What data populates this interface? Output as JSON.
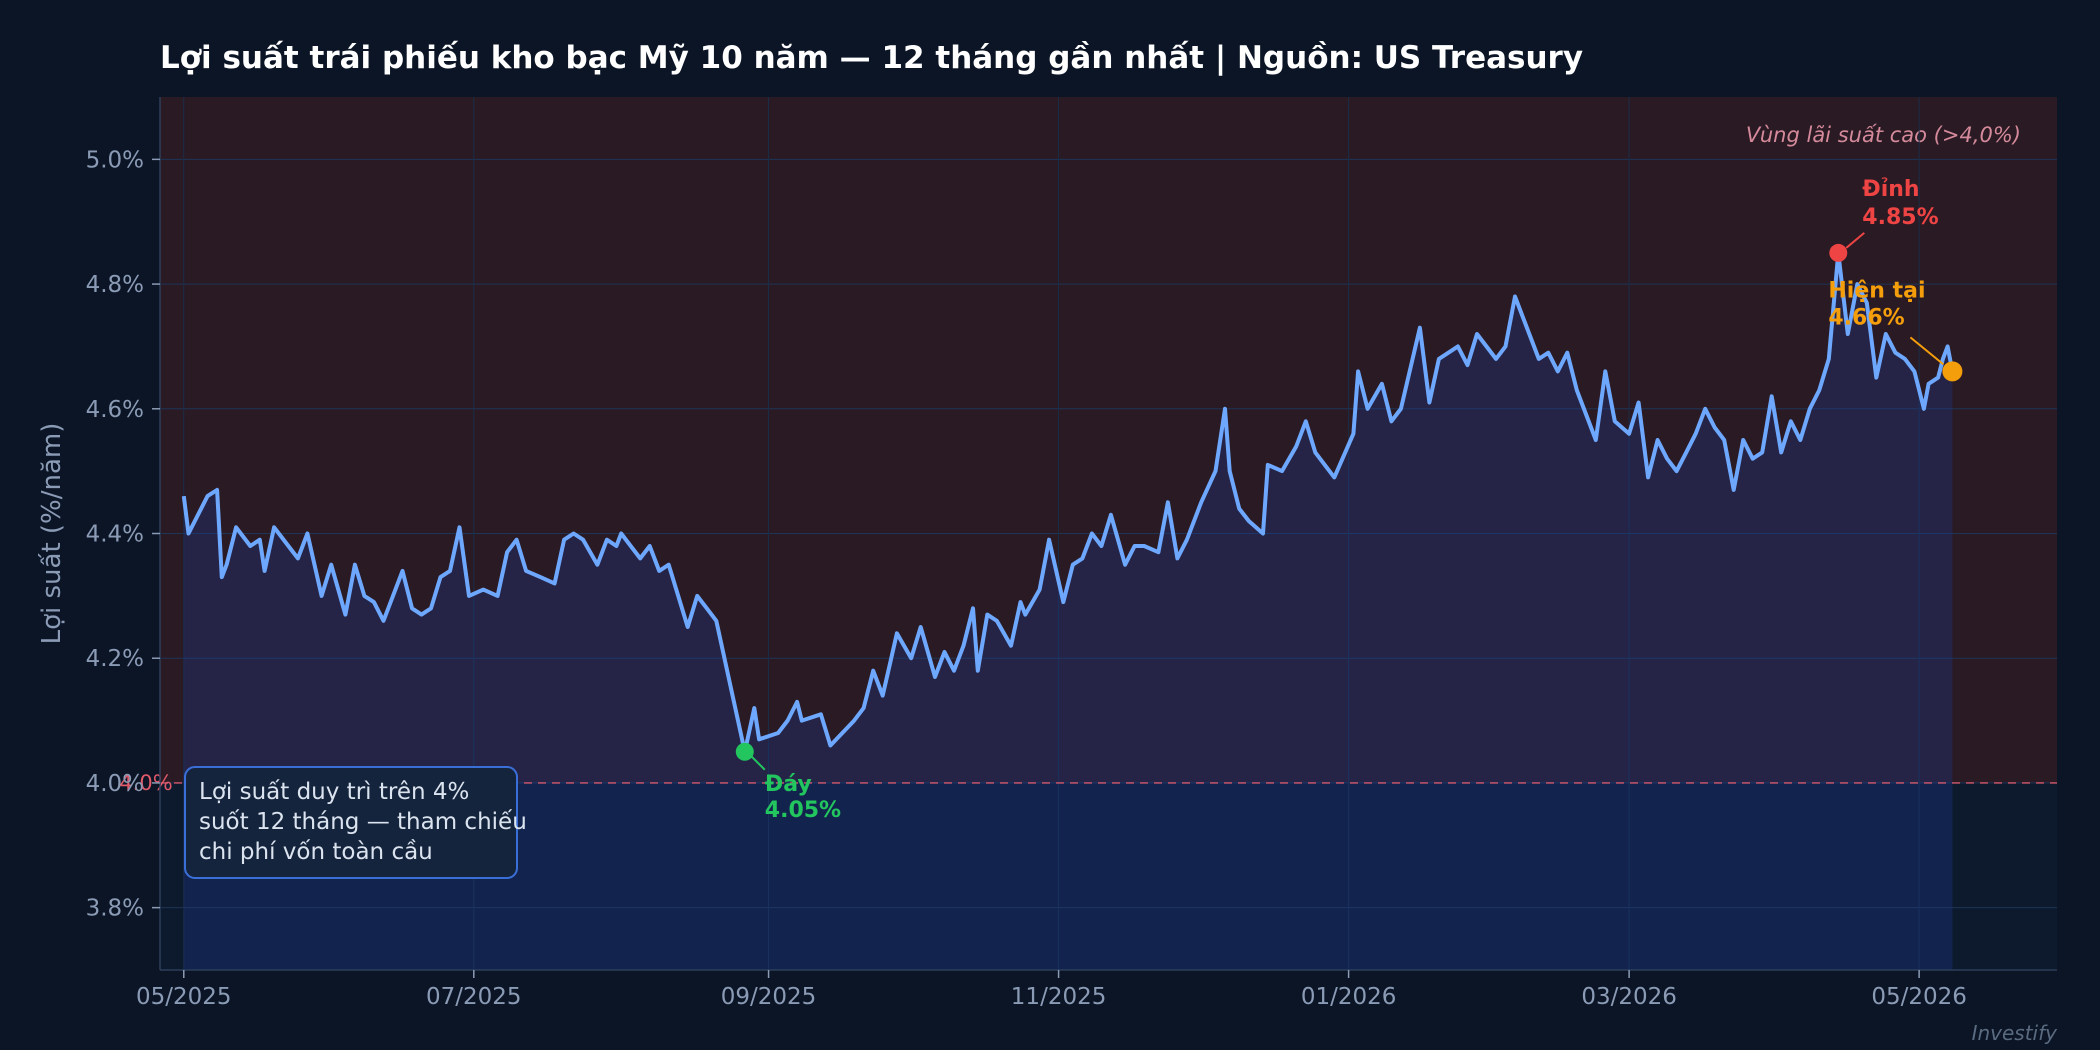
{
  "chart_data": {
    "type": "line",
    "title": "Lợi suất trái phiếu kho bạc Mỹ 10 năm — 12 tháng gần nhất  |  Nguồn: US Treasury",
    "ylabel": "Lợi suất (%/năm)",
    "xlabel": "",
    "ylim": [
      3.7,
      5.1
    ],
    "xlim": [
      "2025-04-26",
      "2026-05-30"
    ],
    "y_ticks": [
      3.8,
      4.0,
      4.2,
      4.4,
      4.6,
      4.8,
      5.0
    ],
    "y_tick_labels": [
      "3.8%",
      "4.0%",
      "4.2%",
      "4.4%",
      "4.6%",
      "4.8%",
      "5.0%"
    ],
    "x_ticks": [
      {
        "date": "2025-05-01",
        "label": "05/2025"
      },
      {
        "date": "2025-07-01",
        "label": "07/2025"
      },
      {
        "date": "2025-09-01",
        "label": "09/2025"
      },
      {
        "date": "2025-11-01",
        "label": "11/2025"
      },
      {
        "date": "2026-01-01",
        "label": "01/2026"
      },
      {
        "date": "2026-03-01",
        "label": "03/2026"
      },
      {
        "date": "2026-05-01",
        "label": "05/2026"
      }
    ],
    "grid": true,
    "colors": {
      "line": "#6ea8fe",
      "area": "#1e3a8a",
      "band": "#2a1a24",
      "reference": "#e05a6a",
      "peak": "#ef4444",
      "trough": "#22c55e",
      "current": "#f59e0b"
    },
    "band": {
      "from": 4.0,
      "label": "Vùng lãi suất cao (>4,0%)"
    },
    "reference_line": {
      "y": 4.0,
      "label": "4.0%"
    },
    "annotations": {
      "peak": {
        "date": "2026-04-14",
        "value": 4.85,
        "label_line1": "Đỉnh",
        "label_line2": "4.85%"
      },
      "trough": {
        "date": "2025-08-27",
        "value": 4.05,
        "label_line1": "Đáy",
        "label_line2": "4.05%"
      },
      "current": {
        "date": "2026-05-08",
        "value": 4.66,
        "label_line1": "Hiện tại",
        "label_line2": "4.66%"
      }
    },
    "note_lines": [
      "Lợi suất duy trì trên 4%",
      "suốt 12 tháng — tham chiếu",
      "chi phí vốn toàn cầu"
    ],
    "watermark": "Investify",
    "series": [
      {
        "points": [
          [
            "2025-05-01",
            4.46
          ],
          [
            "2025-05-02",
            4.4
          ],
          [
            "2025-05-06",
            4.46
          ],
          [
            "2025-05-08",
            4.47
          ],
          [
            "2025-05-09",
            4.33
          ],
          [
            "2025-05-10",
            4.35
          ],
          [
            "2025-05-12",
            4.41
          ],
          [
            "2025-05-15",
            4.38
          ],
          [
            "2025-05-17",
            4.39
          ],
          [
            "2025-05-18",
            4.34
          ],
          [
            "2025-05-20",
            4.41
          ],
          [
            "2025-05-23",
            4.38
          ],
          [
            "2025-05-25",
            4.36
          ],
          [
            "2025-05-27",
            4.4
          ],
          [
            "2025-05-30",
            4.3
          ],
          [
            "2025-06-01",
            4.35
          ],
          [
            "2025-06-04",
            4.27
          ],
          [
            "2025-06-06",
            4.35
          ],
          [
            "2025-06-08",
            4.3
          ],
          [
            "2025-06-10",
            4.29
          ],
          [
            "2025-06-12",
            4.26
          ],
          [
            "2025-06-16",
            4.34
          ],
          [
            "2025-06-18",
            4.28
          ],
          [
            "2025-06-20",
            4.27
          ],
          [
            "2025-06-22",
            4.28
          ],
          [
            "2025-06-24",
            4.33
          ],
          [
            "2025-06-26",
            4.34
          ],
          [
            "2025-06-28",
            4.41
          ],
          [
            "2025-06-30",
            4.3
          ],
          [
            "2025-07-03",
            4.31
          ],
          [
            "2025-07-06",
            4.3
          ],
          [
            "2025-07-08",
            4.37
          ],
          [
            "2025-07-10",
            4.39
          ],
          [
            "2025-07-12",
            4.34
          ],
          [
            "2025-07-15",
            4.33
          ],
          [
            "2025-07-18",
            4.32
          ],
          [
            "2025-07-20",
            4.39
          ],
          [
            "2025-07-22",
            4.4
          ],
          [
            "2025-07-24",
            4.39
          ],
          [
            "2025-07-27",
            4.35
          ],
          [
            "2025-07-29",
            4.39
          ],
          [
            "2025-07-31",
            4.38
          ],
          [
            "2025-08-01",
            4.4
          ],
          [
            "2025-08-05",
            4.36
          ],
          [
            "2025-08-07",
            4.38
          ],
          [
            "2025-08-09",
            4.34
          ],
          [
            "2025-08-11",
            4.35
          ],
          [
            "2025-08-15",
            4.25
          ],
          [
            "2025-08-17",
            4.3
          ],
          [
            "2025-08-19",
            4.28
          ],
          [
            "2025-08-21",
            4.26
          ],
          [
            "2025-08-27",
            4.05
          ],
          [
            "2025-08-29",
            4.12
          ],
          [
            "2025-08-30",
            4.07
          ],
          [
            "2025-09-03",
            4.08
          ],
          [
            "2025-09-05",
            4.1
          ],
          [
            "2025-09-07",
            4.13
          ],
          [
            "2025-09-08",
            4.1
          ],
          [
            "2025-09-12",
            4.11
          ],
          [
            "2025-09-14",
            4.06
          ],
          [
            "2025-09-19",
            4.1
          ],
          [
            "2025-09-21",
            4.12
          ],
          [
            "2025-09-23",
            4.18
          ],
          [
            "2025-09-25",
            4.14
          ],
          [
            "2025-09-28",
            4.24
          ],
          [
            "2025-10-01",
            4.2
          ],
          [
            "2025-10-03",
            4.25
          ],
          [
            "2025-10-06",
            4.17
          ],
          [
            "2025-10-08",
            4.21
          ],
          [
            "2025-10-10",
            4.18
          ],
          [
            "2025-10-12",
            4.22
          ],
          [
            "2025-10-14",
            4.28
          ],
          [
            "2025-10-15",
            4.18
          ],
          [
            "2025-10-17",
            4.27
          ],
          [
            "2025-10-19",
            4.26
          ],
          [
            "2025-10-22",
            4.22
          ],
          [
            "2025-10-24",
            4.29
          ],
          [
            "2025-10-25",
            4.27
          ],
          [
            "2025-10-28",
            4.31
          ],
          [
            "2025-10-30",
            4.39
          ],
          [
            "2025-11-02",
            4.29
          ],
          [
            "2025-11-04",
            4.35
          ],
          [
            "2025-11-06",
            4.36
          ],
          [
            "2025-11-08",
            4.4
          ],
          [
            "2025-11-10",
            4.38
          ],
          [
            "2025-11-12",
            4.43
          ],
          [
            "2025-11-15",
            4.35
          ],
          [
            "2025-11-17",
            4.38
          ],
          [
            "2025-11-19",
            4.38
          ],
          [
            "2025-11-22",
            4.37
          ],
          [
            "2025-11-24",
            4.45
          ],
          [
            "2025-11-26",
            4.36
          ],
          [
            "2025-11-28",
            4.39
          ],
          [
            "2025-12-01",
            4.45
          ],
          [
            "2025-12-04",
            4.5
          ],
          [
            "2025-12-06",
            4.6
          ],
          [
            "2025-12-07",
            4.5
          ],
          [
            "2025-12-09",
            4.44
          ],
          [
            "2025-12-11",
            4.42
          ],
          [
            "2025-12-14",
            4.4
          ],
          [
            "2025-12-15",
            4.51
          ],
          [
            "2025-12-18",
            4.5
          ],
          [
            "2025-12-21",
            4.54
          ],
          [
            "2025-12-23",
            4.58
          ],
          [
            "2025-12-25",
            4.53
          ],
          [
            "2025-12-27",
            4.51
          ],
          [
            "2025-12-29",
            4.49
          ],
          [
            "2026-01-02",
            4.56
          ],
          [
            "2026-01-03",
            4.66
          ],
          [
            "2026-01-05",
            4.6
          ],
          [
            "2026-01-08",
            4.64
          ],
          [
            "2026-01-10",
            4.58
          ],
          [
            "2026-01-12",
            4.6
          ],
          [
            "2026-01-16",
            4.73
          ],
          [
            "2026-01-18",
            4.61
          ],
          [
            "2026-01-20",
            4.68
          ],
          [
            "2026-01-22",
            4.69
          ],
          [
            "2026-01-24",
            4.7
          ],
          [
            "2026-01-26",
            4.67
          ],
          [
            "2026-01-28",
            4.72
          ],
          [
            "2026-02-01",
            4.68
          ],
          [
            "2026-02-03",
            4.7
          ],
          [
            "2026-02-05",
            4.78
          ],
          [
            "2026-02-08",
            4.72
          ],
          [
            "2026-02-10",
            4.68
          ],
          [
            "2026-02-12",
            4.69
          ],
          [
            "2026-02-14",
            4.66
          ],
          [
            "2026-02-16",
            4.69
          ],
          [
            "2026-02-18",
            4.63
          ],
          [
            "2026-02-20",
            4.59
          ],
          [
            "2026-02-22",
            4.55
          ],
          [
            "2026-02-24",
            4.66
          ],
          [
            "2026-02-26",
            4.58
          ],
          [
            "2026-03-01",
            4.56
          ],
          [
            "2026-03-03",
            4.61
          ],
          [
            "2026-03-05",
            4.49
          ],
          [
            "2026-03-07",
            4.55
          ],
          [
            "2026-03-09",
            4.52
          ],
          [
            "2026-03-11",
            4.5
          ],
          [
            "2026-03-13",
            4.53
          ],
          [
            "2026-03-15",
            4.56
          ],
          [
            "2026-03-17",
            4.6
          ],
          [
            "2026-03-19",
            4.57
          ],
          [
            "2026-03-21",
            4.55
          ],
          [
            "2026-03-23",
            4.47
          ],
          [
            "2026-03-25",
            4.55
          ],
          [
            "2026-03-27",
            4.52
          ],
          [
            "2026-03-29",
            4.53
          ],
          [
            "2026-03-31",
            4.62
          ],
          [
            "2026-04-02",
            4.53
          ],
          [
            "2026-04-04",
            4.58
          ],
          [
            "2026-04-06",
            4.55
          ],
          [
            "2026-04-08",
            4.6
          ],
          [
            "2026-04-10",
            4.63
          ],
          [
            "2026-04-12",
            4.68
          ],
          [
            "2026-04-14",
            4.85
          ],
          [
            "2026-04-16",
            4.72
          ],
          [
            "2026-04-18",
            4.8
          ],
          [
            "2026-04-20",
            4.77
          ],
          [
            "2026-04-22",
            4.65
          ],
          [
            "2026-04-24",
            4.72
          ],
          [
            "2026-04-26",
            4.69
          ],
          [
            "2026-04-28",
            4.68
          ],
          [
            "2026-04-30",
            4.66
          ],
          [
            "2026-05-02",
            4.6
          ],
          [
            "2026-05-03",
            4.64
          ],
          [
            "2026-05-05",
            4.65
          ],
          [
            "2026-05-06",
            4.68
          ],
          [
            "2026-05-07",
            4.7
          ],
          [
            "2026-05-08",
            4.66
          ]
        ]
      }
    ]
  }
}
